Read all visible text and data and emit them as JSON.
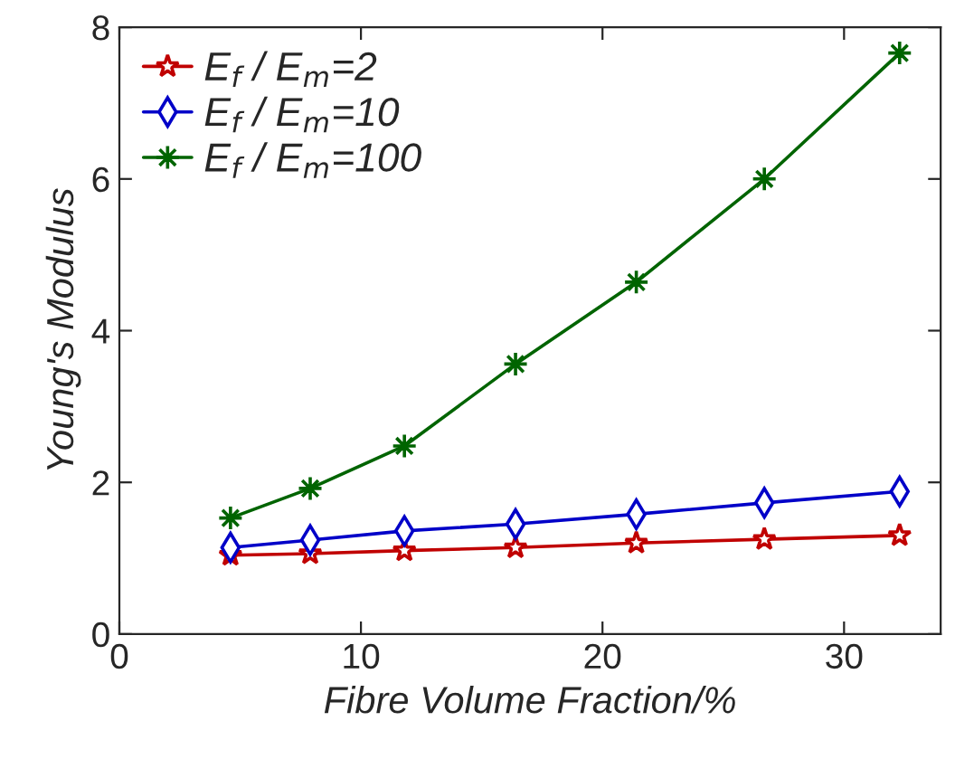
{
  "chart_data": {
    "type": "line",
    "xlabel": "Fibre Volume Fraction/%",
    "ylabel": "Young's Modulus",
    "x": [
      4.6,
      7.9,
      11.8,
      16.4,
      21.4,
      26.7,
      32.3
    ],
    "series": [
      {
        "name": "E$_{f}$ / E$_{m}$=2",
        "color": "#c00000",
        "marker": "star",
        "values": [
          1.04,
          1.06,
          1.1,
          1.14,
          1.2,
          1.25,
          1.3
        ]
      },
      {
        "name": "E$_{f}$ / E$_{m}$=10",
        "color": "#0000c8",
        "marker": "diamond",
        "values": [
          1.14,
          1.24,
          1.36,
          1.45,
          1.58,
          1.73,
          1.88
        ]
      },
      {
        "name": "E$_{f}$ / E$_{m}$=100",
        "color": "#006400",
        "marker": "cross",
        "values": [
          1.53,
          1.92,
          2.48,
          3.56,
          4.64,
          6.0,
          7.66
        ]
      }
    ],
    "xlim": [
      0,
      34
    ],
    "xticks": [
      0,
      10,
      20,
      30
    ],
    "ylim": [
      0,
      8
    ],
    "yticks": [
      0,
      2,
      4,
      6,
      8
    ],
    "grid": false,
    "legend": "top left",
    "line_style": "solid"
  }
}
